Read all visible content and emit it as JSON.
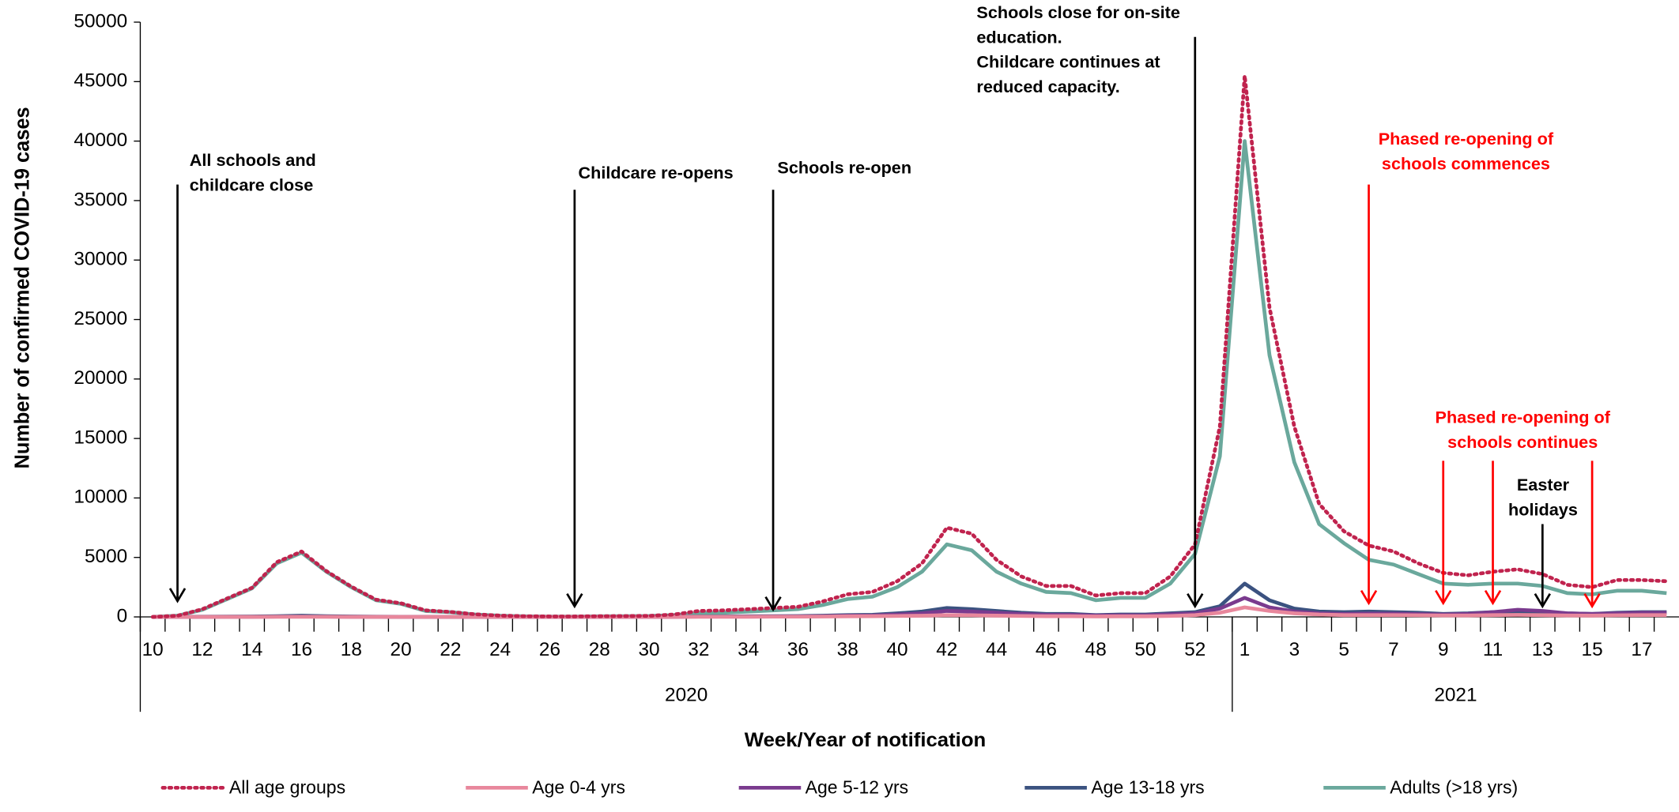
{
  "chart_data": {
    "type": "line",
    "y_label": "Number of confirmed COVID-19 cases",
    "x_label": "Week/Year of notification",
    "categories": [
      10,
      null,
      12,
      null,
      14,
      null,
      16,
      null,
      18,
      null,
      20,
      null,
      22,
      null,
      24,
      null,
      26,
      null,
      28,
      null,
      30,
      null,
      32,
      null,
      34,
      null,
      36,
      null,
      38,
      null,
      40,
      null,
      42,
      null,
      44,
      null,
      46,
      null,
      48,
      null,
      50,
      null,
      52,
      null,
      1,
      null,
      3,
      null,
      5,
      null,
      7,
      null,
      9,
      null,
      11,
      null,
      13,
      null,
      15,
      null,
      17,
      null
    ],
    "groups": [
      {
        "label": "2020",
        "count": 44
      },
      {
        "label": "2021",
        "count": 18
      }
    ],
    "ylim": [
      0,
      50000
    ],
    "yticks": [
      0,
      5000,
      10000,
      15000,
      20000,
      25000,
      30000,
      35000,
      40000,
      45000,
      50000
    ],
    "series": [
      {
        "name": "All age groups",
        "color": "#c0234e",
        "dash": "dotted",
        "values": [
          0,
          100,
          650,
          1550,
          2450,
          4600,
          5500,
          3850,
          2550,
          1450,
          1150,
          550,
          420,
          220,
          110,
          60,
          40,
          40,
          60,
          70,
          90,
          200,
          500,
          550,
          650,
          750,
          850,
          1300,
          1900,
          2100,
          3000,
          4500,
          7500,
          7000,
          4800,
          3400,
          2600,
          2600,
          1800,
          2000,
          2000,
          3400,
          6100,
          16000,
          45500,
          26000,
          16000,
          9500,
          7200,
          6000,
          5500,
          4500,
          3700,
          3500,
          3800,
          4000,
          3600,
          2700,
          2500,
          3100,
          3100,
          3000
        ]
      },
      {
        "name": "Age 0-4 yrs",
        "color": "#e8879c",
        "dash": "solid",
        "values": [
          0,
          0,
          0,
          0,
          0,
          10,
          10,
          10,
          0,
          0,
          0,
          0,
          0,
          0,
          0,
          0,
          0,
          0,
          0,
          0,
          0,
          0,
          10,
          10,
          10,
          20,
          20,
          30,
          50,
          60,
          80,
          100,
          150,
          140,
          110,
          80,
          60,
          60,
          40,
          50,
          50,
          80,
          150,
          350,
          800,
          500,
          300,
          200,
          150,
          150,
          150,
          140,
          120,
          120,
          150,
          170,
          150,
          120,
          110,
          140,
          150,
          150
        ]
      },
      {
        "name": "Age 5-12 yrs",
        "color": "#7a3a8e",
        "dash": "solid",
        "values": [
          0,
          0,
          0,
          10,
          10,
          20,
          30,
          20,
          10,
          10,
          0,
          0,
          0,
          0,
          0,
          0,
          0,
          0,
          0,
          0,
          0,
          10,
          20,
          20,
          30,
          40,
          40,
          60,
          100,
          120,
          200,
          300,
          500,
          450,
          350,
          250,
          180,
          180,
          120,
          140,
          140,
          220,
          300,
          700,
          1600,
          800,
          450,
          300,
          250,
          280,
          280,
          240,
          200,
          250,
          400,
          600,
          500,
          300,
          250,
          300,
          350,
          350
        ]
      },
      {
        "name": "Age 13-18 yrs",
        "color": "#3b5280",
        "dash": "solid",
        "values": [
          0,
          10,
          20,
          30,
          40,
          60,
          100,
          60,
          40,
          20,
          10,
          10,
          0,
          0,
          0,
          0,
          0,
          0,
          0,
          0,
          0,
          10,
          30,
          40,
          50,
          60,
          70,
          100,
          150,
          180,
          300,
          450,
          750,
          650,
          500,
          350,
          250,
          250,
          150,
          200,
          200,
          300,
          400,
          900,
          2800,
          1400,
          700,
          450,
          400,
          450,
          400,
          350,
          250,
          300,
          400,
          450,
          400,
          300,
          250,
          350,
          400,
          400
        ]
      },
      {
        "name": "Adults (>18 yrs)",
        "color": "#6aa89c",
        "dash": "solid",
        "values": [
          0,
          100,
          600,
          1500,
          2400,
          4500,
          5400,
          3800,
          2500,
          1400,
          1100,
          500,
          400,
          200,
          100,
          50,
          30,
          30,
          50,
          60,
          80,
          150,
          300,
          350,
          450,
          550,
          650,
          1000,
          1500,
          1700,
          2500,
          3800,
          6100,
          5600,
          3800,
          2800,
          2100,
          2000,
          1400,
          1600,
          1600,
          2800,
          5300,
          13500,
          40000,
          22000,
          13000,
          7800,
          6200,
          4800,
          4400,
          3600,
          2800,
          2700,
          2800,
          2800,
          2600,
          2000,
          1900,
          2200,
          2200,
          2000
        ]
      }
    ],
    "annotations": [
      {
        "lines": [
          "All schools and",
          "childcare close"
        ],
        "color": "#000000"
      },
      {
        "lines": [
          "Childcare re-opens"
        ],
        "color": "#000000"
      },
      {
        "lines": [
          "Schools re-open"
        ],
        "color": "#000000"
      },
      {
        "lines": [
          "Schools close for on-site",
          "education.",
          "Childcare continues at",
          "reduced capacity."
        ],
        "color": "#000000"
      },
      {
        "lines": [
          "Phased re-opening of",
          "schools commences"
        ],
        "color": "#ff0000"
      },
      {
        "lines": [
          "Phased re-opening of",
          "schools continues"
        ],
        "color": "#ff0000"
      },
      {
        "lines": [
          "Easter",
          "holidays"
        ],
        "color": "#000000"
      }
    ]
  }
}
